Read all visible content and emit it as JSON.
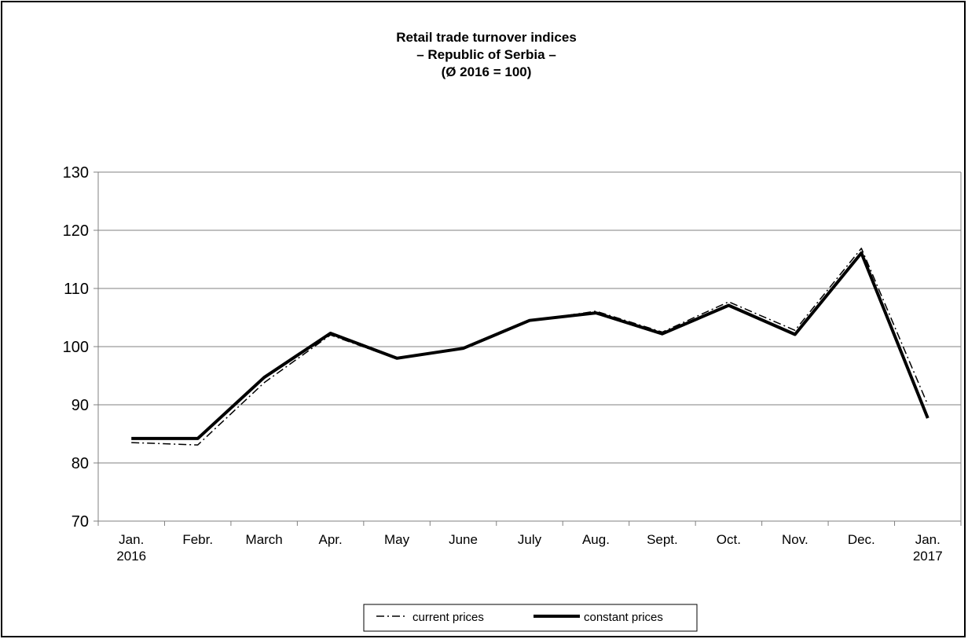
{
  "chart_data": {
    "type": "line",
    "title": "Retail trade turnover indices",
    "subtitle": "– Republic of Serbia –",
    "subtitle2": "(Ø 2016 = 100)",
    "xlabel": "",
    "ylabel": "",
    "ylim": [
      70,
      130
    ],
    "yticks": [
      130,
      120,
      110,
      100,
      90,
      80,
      70
    ],
    "grid": true,
    "legend_position": "bottom",
    "categories": [
      [
        "Jan.",
        "2016"
      ],
      [
        "Febr."
      ],
      [
        "March"
      ],
      [
        "Apr."
      ],
      [
        "May"
      ],
      [
        "June"
      ],
      [
        "July"
      ],
      [
        "Aug."
      ],
      [
        "Sept."
      ],
      [
        "Oct."
      ],
      [
        "Nov."
      ],
      [
        "Dec."
      ],
      [
        "Jan.",
        "2017"
      ]
    ],
    "series": [
      {
        "name": "current prices",
        "style": "dash-dot",
        "values": [
          83.5,
          83.1,
          93.8,
          102.0,
          97.9,
          99.6,
          104.4,
          106.1,
          102.5,
          107.7,
          102.8,
          116.9,
          90.0
        ]
      },
      {
        "name": "constant prices",
        "style": "solid-thick",
        "values": [
          84.2,
          84.2,
          94.7,
          102.3,
          98.0,
          99.7,
          104.5,
          105.8,
          102.2,
          107.1,
          102.1,
          116.1,
          87.7
        ]
      }
    ],
    "colors": {
      "line": "#000000",
      "grid": "#808080",
      "background": "#ffffff"
    }
  }
}
